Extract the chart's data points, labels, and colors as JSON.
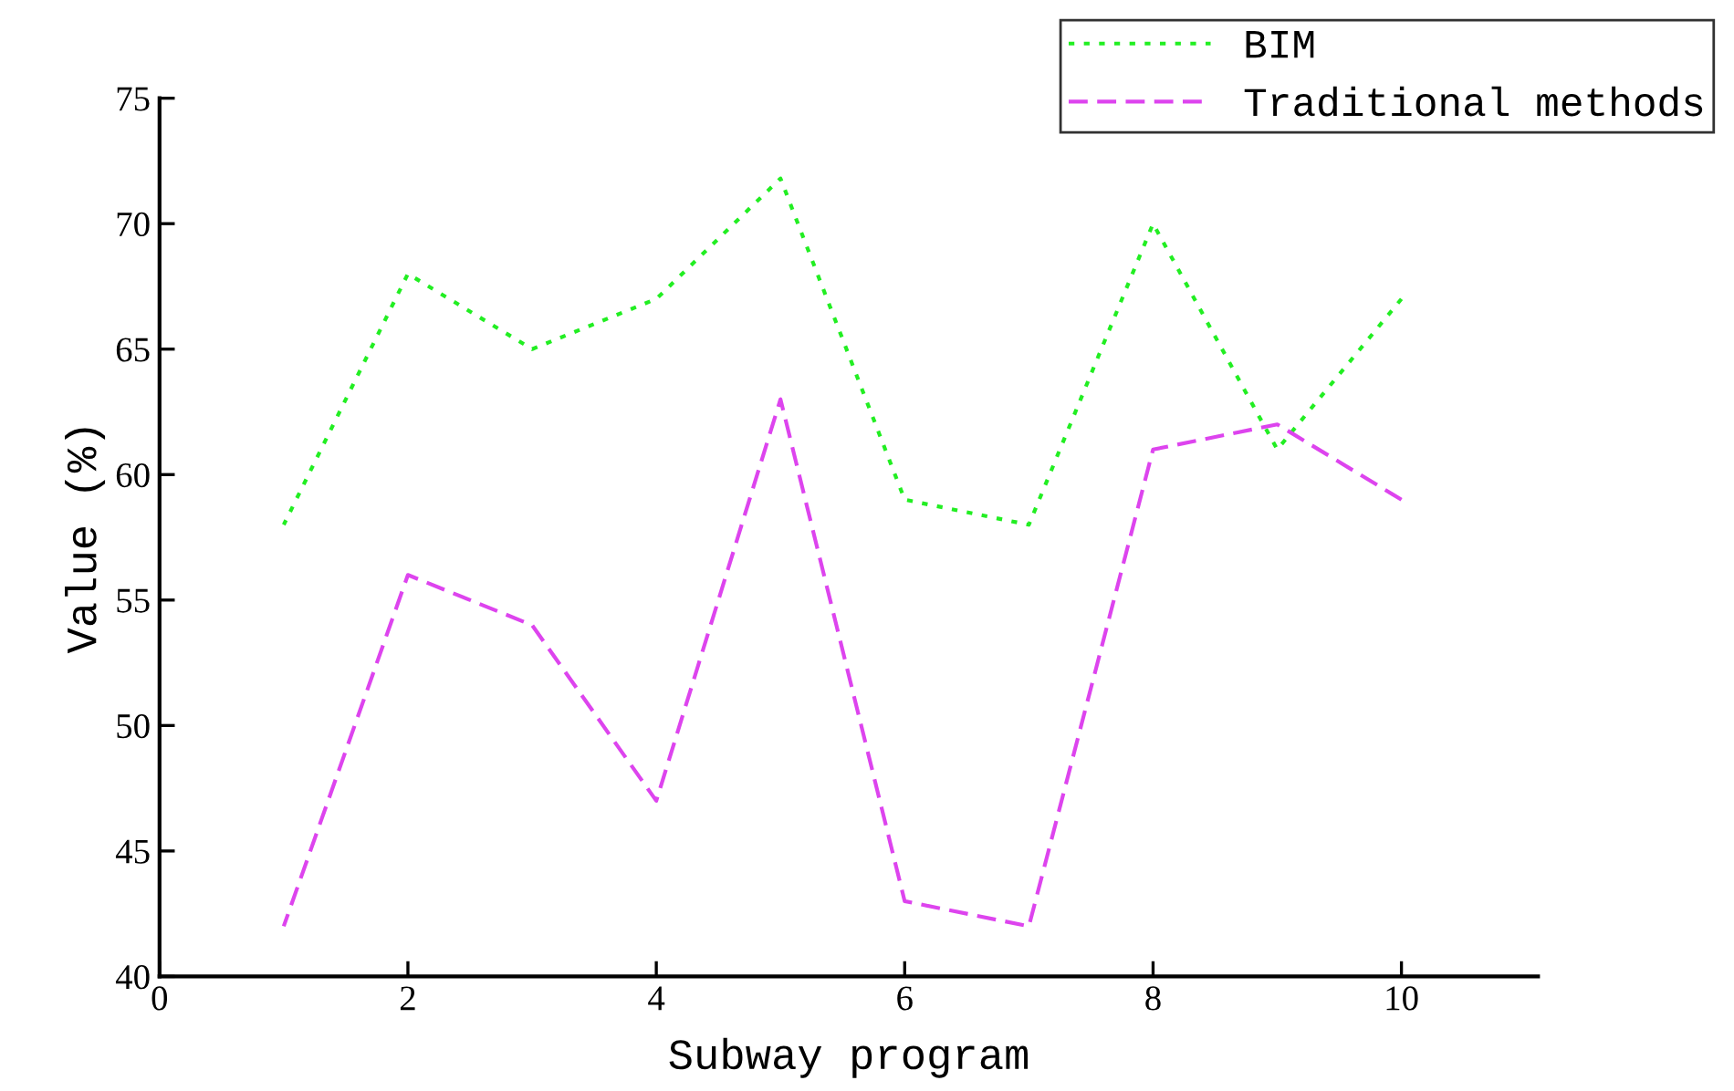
{
  "chart_data": {
    "type": "line",
    "xlabel": "Subway program",
    "ylabel": "Value (%)",
    "x": [
      1,
      2,
      3,
      4,
      5,
      6,
      7,
      8,
      9,
      10
    ],
    "series": [
      {
        "name": "BIM",
        "color": "#22ee22",
        "line_style": "dotted",
        "values": [
          58,
          68,
          65,
          67,
          71.8,
          59,
          58,
          70,
          61,
          67
        ]
      },
      {
        "name": "Traditional methods",
        "color": "#dd44ee",
        "line_style": "dashed",
        "values": [
          42,
          56,
          54,
          47,
          63,
          43,
          42,
          61,
          62,
          59
        ]
      }
    ],
    "xlim": [
      0,
      11.1
    ],
    "xticks": [
      0,
      2,
      4,
      6,
      8,
      10
    ],
    "ylim": [
      40,
      75
    ],
    "yticks": [
      40,
      45,
      50,
      55,
      60,
      65,
      70,
      75
    ],
    "grid": false,
    "legend": "top right",
    "marker": "none"
  }
}
